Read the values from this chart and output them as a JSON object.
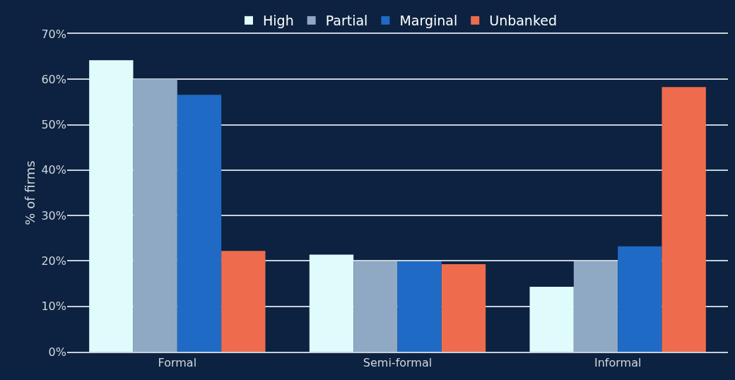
{
  "chart_data": {
    "type": "bar",
    "ylabel": "% of firms",
    "categories": [
      "Formal",
      "Semi-formal",
      "Informal"
    ],
    "series": [
      {
        "name": "High",
        "color": "#e0fbfc",
        "values": [
          64.2,
          21.4,
          14.3
        ]
      },
      {
        "name": "Partial",
        "color": "#8fa9c4",
        "values": [
          60.0,
          19.9,
          19.9
        ]
      },
      {
        "name": "Marginal",
        "color": "#1f6ac5",
        "values": [
          56.6,
          19.9,
          23.2
        ]
      },
      {
        "name": "Unbanked",
        "color": "#ee6c4d",
        "values": [
          22.2,
          19.3,
          58.3
        ]
      }
    ],
    "ylim": [
      0,
      70
    ],
    "yticks": [
      {
        "value": 0,
        "label": "0%"
      },
      {
        "value": 10,
        "label": "10%"
      },
      {
        "value": 20,
        "label": "20%"
      },
      {
        "value": 30,
        "label": "30%"
      },
      {
        "value": 40,
        "label": "40%"
      },
      {
        "value": 50,
        "label": "50%"
      },
      {
        "value": 60,
        "label": "60%"
      },
      {
        "value": 70,
        "label": "70%"
      }
    ],
    "grid": "y",
    "legend": "top"
  }
}
